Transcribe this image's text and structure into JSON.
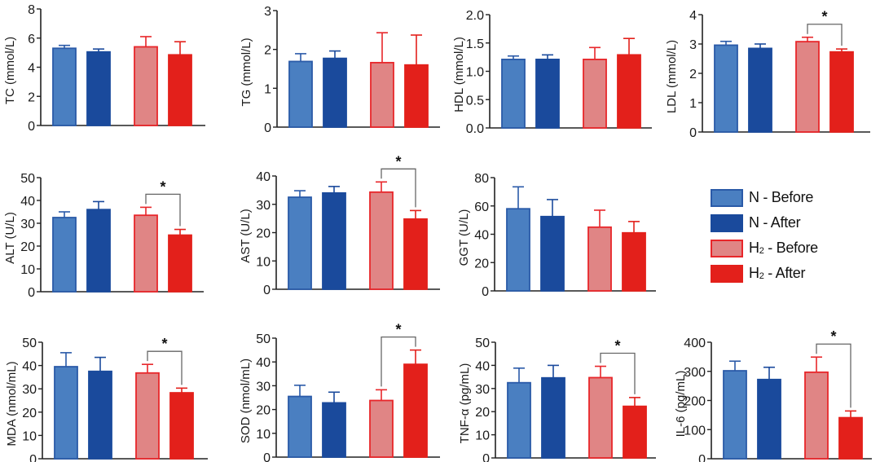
{
  "legend": {
    "position": "right-middle",
    "items": [
      {
        "prefix": "N",
        "sub": "",
        "suffix": " - Before",
        "fill": "#4a7fc1",
        "stroke": "#2a5aa8"
      },
      {
        "prefix": "N",
        "sub": "",
        "suffix": " - After",
        "fill": "#1a4a9c",
        "stroke": "#1a4a9c"
      },
      {
        "prefix": "H",
        "sub": "2",
        "suffix": " - Before",
        "fill": "#e08585",
        "stroke": "#e8262a"
      },
      {
        "prefix": "H",
        "sub": "2",
        "suffix": " - After",
        "fill": "#e3201b",
        "stroke": "#e3201b"
      }
    ]
  },
  "chart_data": [
    {
      "type": "bar",
      "title": "",
      "ylabel": "TC (mmol/L)",
      "ylim": [
        0,
        8
      ],
      "yticks": [
        0,
        2,
        4,
        6,
        8
      ],
      "tick_decimals": 0,
      "categories": [
        "N - Before",
        "N - After",
        "H2 - Before",
        "H2 - After"
      ],
      "values": [
        5.3,
        5.05,
        5.4,
        4.85
      ],
      "errors": [
        0.2,
        0.2,
        0.7,
        0.9
      ],
      "significance": []
    },
    {
      "type": "bar",
      "title": "",
      "ylabel": "TG (mmol/L)",
      "ylim": [
        0,
        3
      ],
      "yticks": [
        0,
        1,
        2,
        3
      ],
      "tick_decimals": 0,
      "categories": [
        "N - Before",
        "N - After",
        "H2 - Before",
        "H2 - After"
      ],
      "values": [
        1.69,
        1.77,
        1.66,
        1.6
      ],
      "errors": [
        0.2,
        0.19,
        0.77,
        0.77
      ],
      "significance": []
    },
    {
      "type": "bar",
      "title": "",
      "ylabel": "HDL (mmol/L)",
      "ylim": [
        0,
        2
      ],
      "yticks": [
        0,
        0.5,
        1,
        1.5,
        2
      ],
      "tick_decimals": 1,
      "categories": [
        "N - Before",
        "N - After",
        "H2 - Before",
        "H2 - After"
      ],
      "values": [
        1.21,
        1.21,
        1.21,
        1.29
      ],
      "errors": [
        0.06,
        0.08,
        0.21,
        0.29
      ],
      "significance": []
    },
    {
      "type": "bar",
      "title": "",
      "ylabel": "LDL (mmol/L)",
      "ylim": [
        0,
        4
      ],
      "yticks": [
        0,
        1,
        2,
        3,
        4
      ],
      "tick_decimals": 0,
      "categories": [
        "N - Before",
        "N - After",
        "H2 - Before",
        "H2 - After"
      ],
      "values": [
        2.96,
        2.85,
        3.08,
        2.73
      ],
      "errors": [
        0.13,
        0.15,
        0.15,
        0.1
      ],
      "significance": [
        {
          "from": 2,
          "to": 3,
          "label": "*"
        }
      ]
    },
    {
      "type": "bar",
      "title": "",
      "ylabel": "ALT (U/L)",
      "ylim": [
        0,
        50
      ],
      "yticks": [
        0,
        10,
        20,
        30,
        40,
        50
      ],
      "tick_decimals": 0,
      "categories": [
        "N - Before",
        "N - After",
        "H2 - Before",
        "H2 - After"
      ],
      "values": [
        32.5,
        36,
        33.5,
        24.8
      ],
      "errors": [
        2.5,
        3.5,
        3.5,
        2.5
      ],
      "significance": [
        {
          "from": 2,
          "to": 3,
          "label": "*"
        }
      ]
    },
    {
      "type": "bar",
      "title": "",
      "ylabel": "AST (U/L)",
      "ylim": [
        0,
        40
      ],
      "yticks": [
        0,
        10,
        20,
        30,
        40
      ],
      "tick_decimals": 0,
      "categories": [
        "N - Before",
        "N - After",
        "H2 - Before",
        "H2 - After"
      ],
      "values": [
        32.5,
        34,
        34.3,
        24.8
      ],
      "errors": [
        2.3,
        2.3,
        3.6,
        3
      ],
      "significance": [
        {
          "from": 2,
          "to": 3,
          "label": "*"
        }
      ]
    },
    {
      "type": "bar",
      "title": "",
      "ylabel": "GGT (U/L)",
      "ylim": [
        0,
        80
      ],
      "yticks": [
        0,
        20,
        40,
        60,
        80
      ],
      "tick_decimals": 0,
      "categories": [
        "N - Before",
        "N - After",
        "H2 - Before",
        "H2 - After"
      ],
      "values": [
        58,
        52.5,
        45,
        41
      ],
      "errors": [
        15.5,
        12,
        12,
        8
      ],
      "significance": []
    },
    {
      "type": "legend"
    },
    {
      "type": "bar",
      "title": "",
      "ylabel": "MDA (nmol/mL)",
      "ylim": [
        0,
        50
      ],
      "yticks": [
        0,
        10,
        20,
        30,
        40,
        50
      ],
      "tick_decimals": 0,
      "categories": [
        "N - Before",
        "N - After",
        "H2 - Before",
        "H2 - After"
      ],
      "values": [
        39.5,
        37.5,
        36.8,
        28.3
      ],
      "errors": [
        6,
        6,
        3.7,
        2
      ],
      "significance": [
        {
          "from": 2,
          "to": 3,
          "label": "*"
        }
      ]
    },
    {
      "type": "bar",
      "title": "",
      "ylabel": "SOD (nmol/mL)",
      "ylim": [
        0,
        50
      ],
      "yticks": [
        0,
        10,
        20,
        30,
        40,
        50
      ],
      "tick_decimals": 0,
      "categories": [
        "N - Before",
        "N - After",
        "H2 - Before",
        "H2 - After"
      ],
      "values": [
        25.5,
        22.8,
        23.8,
        39
      ],
      "errors": [
        4.7,
        4.5,
        4.5,
        6
      ],
      "significance": [
        {
          "from": 2,
          "to": 3,
          "label": "*"
        }
      ]
    },
    {
      "type": "bar",
      "title": "",
      "ylabel": "TNF-α (pg/mL)",
      "ylim": [
        0,
        50
      ],
      "yticks": [
        0,
        10,
        20,
        30,
        40,
        50
      ],
      "tick_decimals": 0,
      "categories": [
        "N - Before",
        "N - After",
        "H2 - Before",
        "H2 - After"
      ],
      "values": [
        32.5,
        34.6,
        34.7,
        22.3
      ],
      "errors": [
        6.3,
        5.4,
        4.9,
        3.8
      ],
      "significance": [
        {
          "from": 2,
          "to": 3,
          "label": "*"
        }
      ]
    },
    {
      "type": "bar",
      "title": "",
      "ylabel": "IL-6 (pg/mL)",
      "ylim": [
        0,
        400
      ],
      "yticks": [
        0,
        100,
        200,
        300,
        400
      ],
      "tick_decimals": 0,
      "categories": [
        "N - Before",
        "N - After",
        "H2 - Before",
        "H2 - After"
      ],
      "values": [
        302,
        272,
        297,
        141
      ],
      "errors": [
        33,
        42,
        52,
        23
      ],
      "significance": [
        {
          "from": 2,
          "to": 3,
          "label": "*"
        }
      ]
    }
  ]
}
